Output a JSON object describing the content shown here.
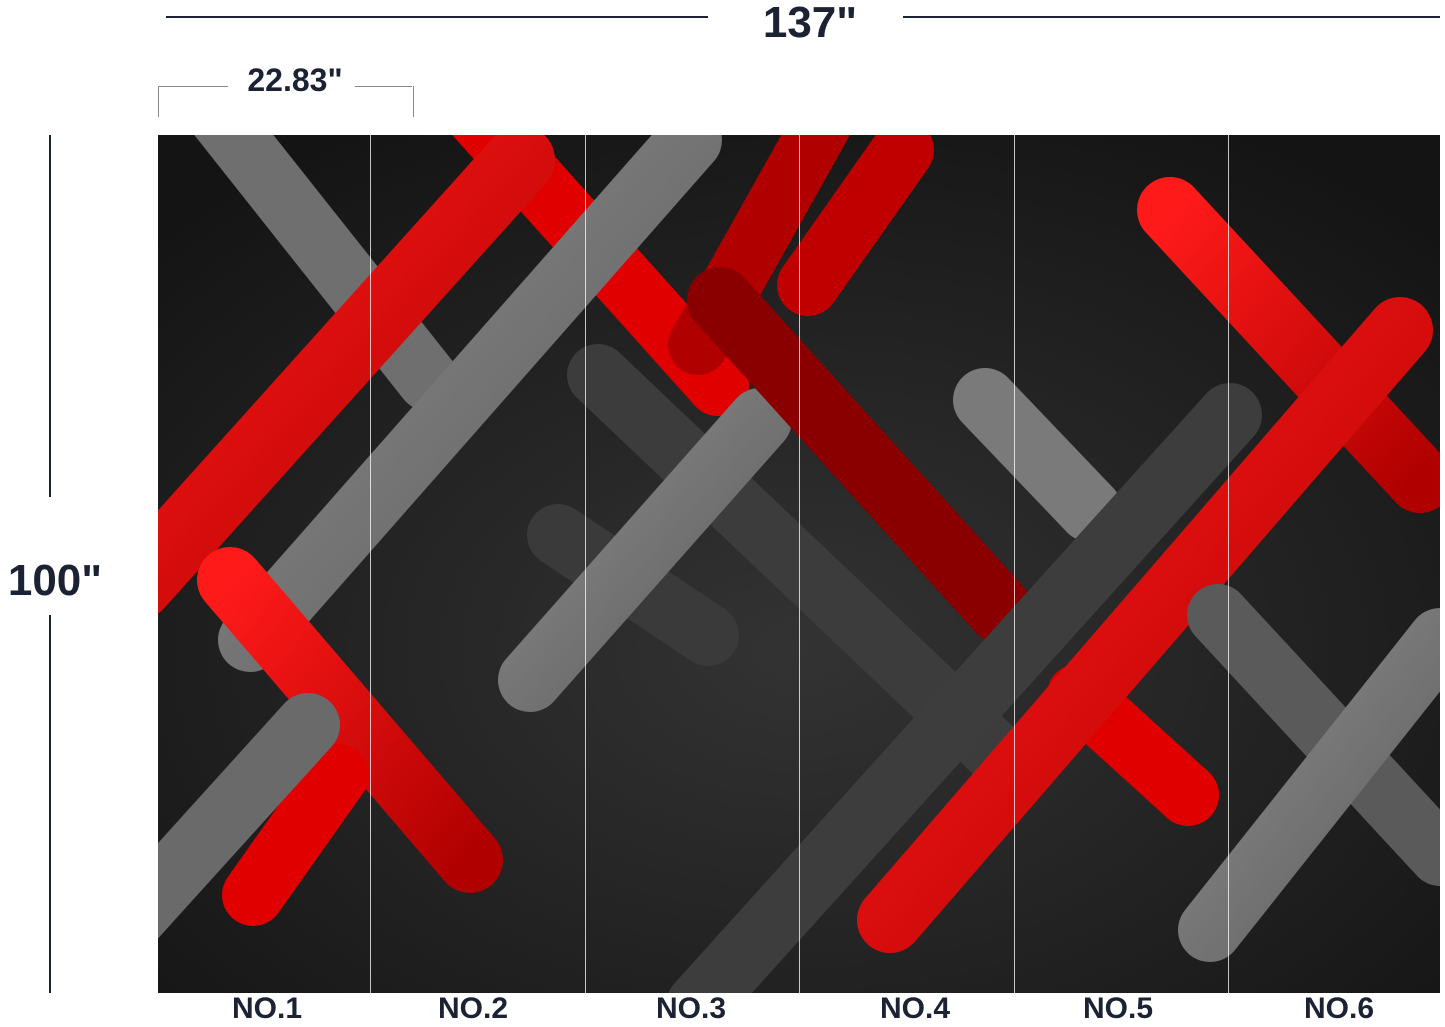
{
  "dimensions": {
    "total_width": "137\"",
    "panel_width": "22.83\"",
    "total_height": "100\""
  },
  "panels": [
    "NO.1",
    "NO.2",
    "NO.3",
    "NO.4",
    "NO.5",
    "NO.6"
  ],
  "colors": {
    "background": "#1c1c1c",
    "red": "#e00000",
    "dark_red": "#8a0000",
    "gray": "#7a7a7a",
    "dark_gray": "#3a3a3a",
    "text": "#1a2233"
  }
}
